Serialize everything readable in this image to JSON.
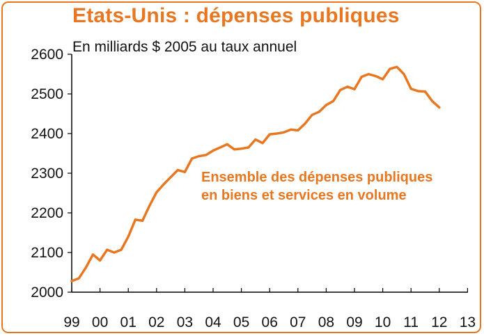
{
  "colors": {
    "accent": "#E87722",
    "axis": "#000000",
    "text": "#111111"
  },
  "chart_data": {
    "type": "line",
    "title": "Etats-Unis : dépenses publiques",
    "subtitle": "En milliards $ 2005 au taux annuel",
    "xlabel": "",
    "ylabel": "",
    "ylim": [
      2000,
      2600
    ],
    "xlim": [
      1999,
      2013
    ],
    "y_ticks": [
      "2000",
      "2100",
      "2200",
      "2300",
      "2400",
      "2500",
      "2600"
    ],
    "x_ticks": [
      "99",
      "00",
      "01",
      "02",
      "03",
      "04",
      "05",
      "06",
      "07",
      "08",
      "09",
      "10",
      "11",
      "12",
      "13"
    ],
    "grid": false,
    "annotation": [
      "Ensemble des dépenses publiques",
      "en biens et services en volume"
    ],
    "series": [
      {
        "color": "#E87722",
        "x": [
          1999.0,
          1999.25,
          1999.5,
          1999.75,
          2000.0,
          2000.25,
          2000.5,
          2000.75,
          2001.0,
          2001.25,
          2001.5,
          2001.75,
          2002.0,
          2002.25,
          2002.5,
          2002.75,
          2003.0,
          2003.25,
          2003.5,
          2003.75,
          2004.0,
          2004.25,
          2004.5,
          2004.75,
          2005.0,
          2005.25,
          2005.5,
          2005.75,
          2006.0,
          2006.25,
          2006.5,
          2006.75,
          2007.0,
          2007.25,
          2007.5,
          2007.75,
          2008.0,
          2008.25,
          2008.5,
          2008.75,
          2009.0,
          2009.25,
          2009.5,
          2009.75,
          2010.0,
          2010.25,
          2010.5,
          2010.75,
          2011.0,
          2011.25,
          2011.5,
          2011.75,
          2012.0
        ],
        "values": [
          2028,
          2035,
          2062,
          2095,
          2080,
          2107,
          2100,
          2107,
          2140,
          2183,
          2180,
          2218,
          2252,
          2272,
          2290,
          2308,
          2303,
          2337,
          2343,
          2346,
          2357,
          2365,
          2373,
          2360,
          2362,
          2365,
          2385,
          2376,
          2398,
          2400,
          2403,
          2410,
          2408,
          2425,
          2447,
          2455,
          2472,
          2482,
          2510,
          2518,
          2512,
          2543,
          2550,
          2545,
          2537,
          2563,
          2568,
          2550,
          2513,
          2507,
          2506,
          2482,
          2466
        ]
      }
    ]
  }
}
